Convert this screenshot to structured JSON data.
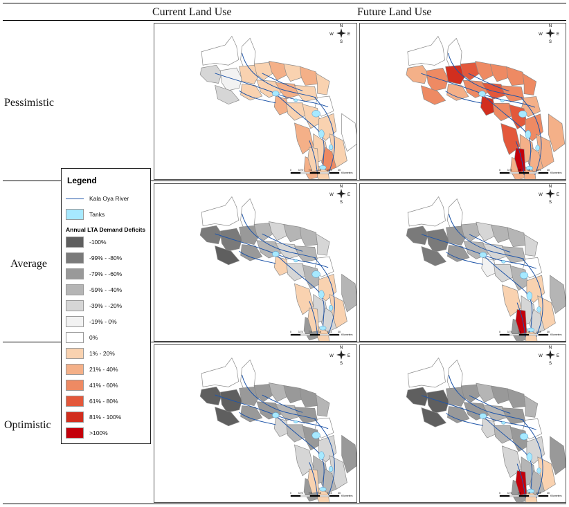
{
  "columns": [
    "Current Land Use",
    "Future Land Use"
  ],
  "rows": [
    "Pessimistic",
    "Average",
    "Optimistic"
  ],
  "legend": {
    "title": "Legend",
    "river_label": "Kala Oya River",
    "tanks_label": "Tanks",
    "deficit_title": "Annual LTA Demand Deficits",
    "classes": [
      {
        "label": "-100%",
        "color": "#5f5f5f"
      },
      {
        "label": "-99% - -80%",
        "color": "#7a7a7a"
      },
      {
        "label": "-79% - -60%",
        "color": "#999999"
      },
      {
        "label": "-59% - -40%",
        "color": "#b5b5b5"
      },
      {
        "label": "-39% - -20%",
        "color": "#d6d6d6"
      },
      {
        "label": "-19% - 0%",
        "color": "#f2f2f2"
      },
      {
        "label": "0%",
        "color": "#ffffff"
      },
      {
        "label": "1% - 20%",
        "color": "#f9d2b0"
      },
      {
        "label": "21% - 40%",
        "color": "#f4b088"
      },
      {
        "label": "41% - 60%",
        "color": "#ee8a63"
      },
      {
        "label": "61% - 80%",
        "color": "#e3583b"
      },
      {
        "label": "81% - 100%",
        "color": "#d22e1e"
      },
      {
        "label": ">100%",
        "color": "#c4000b"
      }
    ],
    "tank_color": "#a7e9ff",
    "river_color": "#1f55a8"
  },
  "map": {
    "north_arrow": {
      "n": "N",
      "s": "S",
      "e": "E",
      "w": "W"
    },
    "scale_labels": [
      "0",
      "3.75",
      "7.5",
      "15",
      "22.5",
      "30"
    ],
    "scale_unit": "Kilometers"
  },
  "panels": [
    {
      "row": "Pessimistic",
      "col": "Current Land Use",
      "classes": [
        "0%",
        "0%",
        "-39% - -20%",
        "-19% - 0%",
        "-39% - -20%",
        "1% - 20%",
        "1% - 20%",
        "21% - 40%",
        "1% - 20%",
        "21% - 40%",
        "1% - 20%",
        "1% - 20%",
        "1% - 20%",
        "21% - 40%",
        "21% - 40%",
        "1% - 20%",
        "1% - 20%",
        "0%",
        "1% - 20%",
        "1% - 20%",
        "21% - 40%",
        "1% - 20%",
        "41% - 60%",
        "21% - 40%",
        "1% - 20%",
        "1% - 20%",
        "1% - 20%",
        "0%"
      ]
    },
    {
      "row": "Pessimistic",
      "col": "Future Land Use",
      "classes": [
        "0%",
        "0%",
        "21% - 40%",
        "41% - 60%",
        "41% - 60%",
        "81% - 100%",
        "61% - 80%",
        "41% - 60%",
        "41% - 60%",
        "41% - 60%",
        "41% - 60%",
        "21% - 40%",
        "41% - 60%",
        "81% - 100%",
        "61% - 80%",
        "41% - 60%",
        "41% - 60%",
        "21% - 40%",
        "61% - 80%",
        "41% - 60%",
        "61% - 80%",
        "21% - 40%",
        "21% - 40%",
        "21% - 40%",
        "21% - 40%",
        ">100%",
        "21% - 40%",
        "21% - 40%"
      ]
    },
    {
      "row": "Average",
      "col": "Current Land Use",
      "classes": [
        "0%",
        "0%",
        "-99% - -80%",
        "-99% - -80%",
        "-100%",
        "-79% - -60%",
        "-59% - -40%",
        "-39% - -20%",
        "-59% - -40%",
        "-59% - -40%",
        "-39% - -20%",
        "-79% - -60%",
        "-59% - -40%",
        "1% - 20%",
        "-39% - -20%",
        "-59% - -40%",
        "-39% - -20%",
        "0%",
        "-59% - -40%",
        "1% - 20%",
        "1% - 20%",
        "-39% - -20%",
        "-39% - -20%",
        "-79% - -60%",
        "1% - 20%",
        "1% - 20%",
        "1% - 20%",
        "-59% - -40%"
      ]
    },
    {
      "row": "Average",
      "col": "Future Land Use",
      "classes": [
        "0%",
        "0%",
        "-99% - -80%",
        "-99% - -80%",
        "-99% - -80%",
        "-79% - -60%",
        "-59% - -40%",
        "-39% - -20%",
        "-59% - -40%",
        "-59% - -40%",
        "-39% - -20%",
        "-79% - -60%",
        "-59% - -40%",
        "-19% - 0%",
        "-39% - -20%",
        "-59% - -40%",
        "-39% - -20%",
        "0%",
        "-59% - -40%",
        "1% - 20%",
        "1% - 20%",
        "-39% - -20%",
        "-39% - -20%",
        "-79% - -60%",
        "1% - 20%",
        ">100%",
        "1% - 20%",
        "-59% - -40%"
      ]
    },
    {
      "row": "Optimistic",
      "col": "Current Land Use",
      "classes": [
        "0%",
        "0%",
        "-100%",
        "-100%",
        "-100%",
        "-79% - -60%",
        "-79% - -60%",
        "-59% - -40%",
        "-79% - -60%",
        "-79% - -60%",
        "-59% - -40%",
        "-79% - -60%",
        "-79% - -60%",
        "-39% - -20%",
        "-59% - -40%",
        "-79% - -60%",
        "-59% - -40%",
        "0%",
        "-79% - -60%",
        "-39% - -20%",
        "-39% - -20%",
        "-59% - -40%",
        "-59% - -40%",
        "-79% - -60%",
        "1% - 20%",
        "1% - 20%",
        "-39% - -20%",
        "-79% - -60%"
      ]
    },
    {
      "row": "Optimistic",
      "col": "Future Land Use",
      "classes": [
        "0%",
        "0%",
        "-100%",
        "-100%",
        "-100%",
        "-79% - -60%",
        "-79% - -60%",
        "-59% - -40%",
        "-79% - -60%",
        "-79% - -60%",
        "-59% - -40%",
        "-79% - -60%",
        "-79% - -60%",
        "-39% - -20%",
        "-59% - -40%",
        "-79% - -60%",
        "-59% - -40%",
        "0%",
        "-79% - -60%",
        "-39% - -20%",
        "-39% - -20%",
        "-59% - -40%",
        "-59% - -40%",
        "-79% - -60%",
        "1% - 20%",
        ">100%",
        "1% - 20%",
        "-79% - -60%"
      ]
    }
  ]
}
